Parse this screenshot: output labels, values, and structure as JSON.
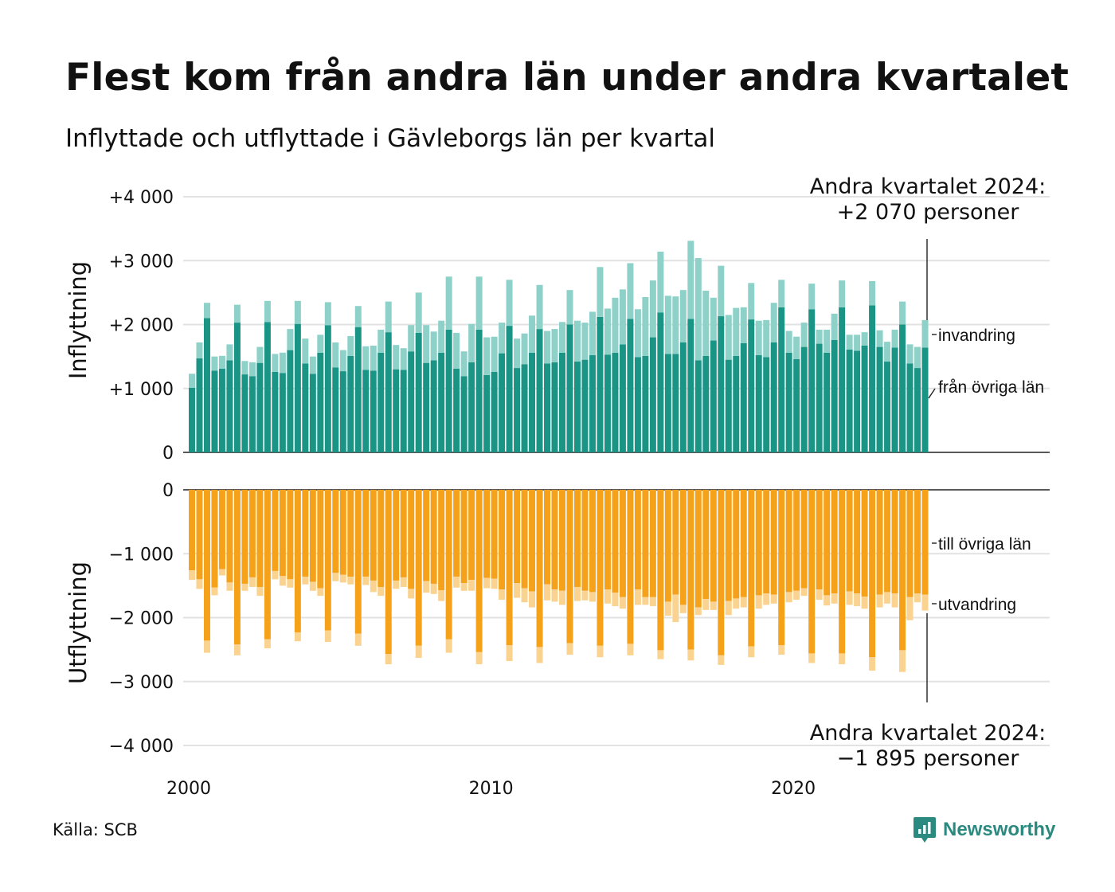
{
  "title": "Flest kom från andra län under andra kvartalet",
  "subtitle": "Inflyttade och utflyttade i Gävleborgs län per kvartal",
  "source": "Källa: SCB",
  "brand": "Newsworthy",
  "chart_data": {
    "type": "bar",
    "stacked": true,
    "x_start": "2000 Q1",
    "x_end": "2024 Q2",
    "quarters": [
      "2000 Q1",
      "2000 Q2",
      "2000 Q3",
      "2000 Q4",
      "2001 Q1",
      "2001 Q2",
      "2001 Q3",
      "2001 Q4",
      "2002 Q1",
      "2002 Q2",
      "2002 Q3",
      "2002 Q4",
      "2003 Q1",
      "2003 Q2",
      "2003 Q3",
      "2003 Q4",
      "2004 Q1",
      "2004 Q2",
      "2004 Q3",
      "2004 Q4",
      "2005 Q1",
      "2005 Q2",
      "2005 Q3",
      "2005 Q4",
      "2006 Q1",
      "2006 Q2",
      "2006 Q3",
      "2006 Q4",
      "2007 Q1",
      "2007 Q2",
      "2007 Q3",
      "2007 Q4",
      "2008 Q1",
      "2008 Q2",
      "2008 Q3",
      "2008 Q4",
      "2009 Q1",
      "2009 Q2",
      "2009 Q3",
      "2009 Q4",
      "2010 Q1",
      "2010 Q2",
      "2010 Q3",
      "2010 Q4",
      "2011 Q1",
      "2011 Q2",
      "2011 Q3",
      "2011 Q4",
      "2012 Q1",
      "2012 Q2",
      "2012 Q3",
      "2012 Q4",
      "2013 Q1",
      "2013 Q2",
      "2013 Q3",
      "2013 Q4",
      "2014 Q1",
      "2014 Q2",
      "2014 Q3",
      "2014 Q4",
      "2015 Q1",
      "2015 Q2",
      "2015 Q3",
      "2015 Q4",
      "2016 Q1",
      "2016 Q2",
      "2016 Q3",
      "2016 Q4",
      "2017 Q1",
      "2017 Q2",
      "2017 Q3",
      "2017 Q4",
      "2018 Q1",
      "2018 Q2",
      "2018 Q3",
      "2018 Q4",
      "2019 Q1",
      "2019 Q2",
      "2019 Q3",
      "2019 Q4",
      "2020 Q1",
      "2020 Q2",
      "2020 Q3",
      "2020 Q4",
      "2021 Q1",
      "2021 Q2",
      "2021 Q3",
      "2021 Q4",
      "2022 Q1",
      "2022 Q2",
      "2022 Q3",
      "2022 Q4",
      "2023 Q1",
      "2023 Q2",
      "2023 Q3",
      "2023 Q4",
      "2024 Q1",
      "2024 Q2"
    ],
    "x_ticks": [
      "2000",
      "2010",
      "2020"
    ],
    "top_panel": {
      "ylabel": "Inflyttning",
      "yticks": [
        "+4 000",
        "+3 000",
        "+2 000",
        "+1 000",
        "0"
      ],
      "ylim": [
        0,
        4000
      ],
      "series": [
        {
          "name": "från övriga län",
          "color": "#1a9485",
          "values": [
            1010,
            1470,
            2100,
            1280,
            1310,
            1440,
            2030,
            1220,
            1190,
            1400,
            2040,
            1260,
            1240,
            1600,
            2010,
            1390,
            1230,
            1560,
            1990,
            1330,
            1270,
            1510,
            1960,
            1290,
            1280,
            1560,
            1880,
            1300,
            1290,
            1580,
            1870,
            1400,
            1440,
            1560,
            1920,
            1310,
            1190,
            1410,
            1920,
            1210,
            1260,
            1550,
            1980,
            1320,
            1380,
            1560,
            1930,
            1390,
            1410,
            1560,
            2000,
            1420,
            1450,
            1520,
            2120,
            1530,
            1560,
            1690,
            2090,
            1490,
            1510,
            1800,
            2190,
            1540,
            1540,
            1720,
            2090,
            1440,
            1510,
            1750,
            2130,
            1450,
            1510,
            1710,
            2080,
            1520,
            1490,
            1720,
            2270,
            1560,
            1460,
            1650,
            2240,
            1700,
            1560,
            1760,
            2270,
            1610,
            1590,
            1670,
            2300,
            1650,
            1420,
            1640,
            2000,
            1390,
            1320,
            1640
          ]
        },
        {
          "name": "invandring",
          "color": "#8ed1c8",
          "values": [
            220,
            250,
            240,
            220,
            200,
            250,
            280,
            210,
            220,
            250,
            330,
            280,
            320,
            330,
            360,
            390,
            270,
            280,
            360,
            390,
            330,
            310,
            330,
            370,
            390,
            360,
            480,
            380,
            340,
            410,
            630,
            590,
            450,
            500,
            830,
            560,
            390,
            600,
            830,
            590,
            550,
            480,
            720,
            460,
            480,
            580,
            690,
            510,
            520,
            480,
            540,
            640,
            580,
            680,
            780,
            720,
            860,
            860,
            870,
            750,
            920,
            890,
            950,
            910,
            900,
            820,
            1220,
            1600,
            1020,
            670,
            790,
            700,
            750,
            560,
            570,
            540,
            580,
            620,
            430,
            340,
            350,
            380,
            400,
            220,
            360,
            410,
            420,
            230,
            250,
            210,
            380,
            260,
            310,
            280,
            360,
            300,
            330,
            430
          ]
        }
      ]
    },
    "bottom_panel": {
      "ylabel": "Utflyttning",
      "yticks": [
        "0",
        "−1 000",
        "−2 000",
        "−3 000",
        "−4 000"
      ],
      "ylim": [
        -4000,
        0
      ],
      "series": [
        {
          "name": "till övriga län",
          "color": "#f5a21a",
          "values": [
            -1260,
            -1400,
            -2360,
            -1530,
            -1240,
            -1450,
            -2420,
            -1470,
            -1370,
            -1520,
            -2340,
            -1270,
            -1350,
            -1400,
            -2230,
            -1360,
            -1440,
            -1540,
            -2200,
            -1300,
            -1330,
            -1360,
            -2250,
            -1360,
            -1420,
            -1520,
            -2570,
            -1420,
            -1370,
            -1550,
            -2440,
            -1430,
            -1470,
            -1570,
            -2340,
            -1360,
            -1460,
            -1410,
            -2540,
            -1380,
            -1390,
            -1560,
            -2430,
            -1460,
            -1540,
            -1590,
            -2460,
            -1480,
            -1560,
            -1580,
            -2400,
            -1520,
            -1580,
            -1600,
            -2440,
            -1560,
            -1610,
            -1680,
            -2410,
            -1560,
            -1680,
            -1680,
            -2510,
            -1750,
            -1640,
            -1800,
            -2500,
            -1840,
            -1710,
            -1750,
            -2590,
            -1740,
            -1700,
            -1680,
            -2450,
            -1650,
            -1620,
            -1640,
            -2430,
            -1600,
            -1580,
            -1540,
            -2560,
            -1560,
            -1650,
            -1620,
            -2560,
            -1590,
            -1620,
            -1670,
            -2620,
            -1640,
            -1600,
            -1620,
            -2510,
            -1680,
            -1620,
            -1640
          ]
        },
        {
          "name": "utvandring",
          "color": "#fad391",
          "values": [
            -150,
            -150,
            -190,
            -120,
            -100,
            -130,
            -170,
            -110,
            -150,
            -140,
            -140,
            -130,
            -150,
            -130,
            -140,
            -120,
            -140,
            -120,
            -180,
            -130,
            -120,
            -120,
            -190,
            -130,
            -180,
            -140,
            -160,
            -130,
            -150,
            -150,
            -190,
            -180,
            -160,
            -170,
            -210,
            -170,
            -120,
            -170,
            -190,
            -160,
            -160,
            -160,
            -250,
            -230,
            -220,
            -250,
            -250,
            -250,
            -190,
            -220,
            -180,
            -220,
            -150,
            -150,
            -180,
            -220,
            -210,
            -180,
            -180,
            -240,
            -120,
            -140,
            -140,
            -220,
            -430,
            -130,
            -170,
            -120,
            -170,
            -130,
            -150,
            -220,
            -160,
            -160,
            -170,
            -210,
            -180,
            -140,
            -150,
            -160,
            -140,
            -120,
            -150,
            -160,
            -160,
            -160,
            -170,
            -210,
            -200,
            -190,
            -210,
            -200,
            -180,
            -220,
            -340,
            -360,
            -140,
            -250
          ]
        }
      ]
    },
    "annotations": {
      "top": [
        "Andra kvartalet 2024:",
        "+2 070 personer"
      ],
      "bottom": [
        "Andra kvartalet 2024:",
        "−1 895 personer"
      ]
    },
    "legend_labels": [
      "invandring",
      "från övriga län",
      "till övriga län",
      "utvandring"
    ],
    "grid": true
  }
}
